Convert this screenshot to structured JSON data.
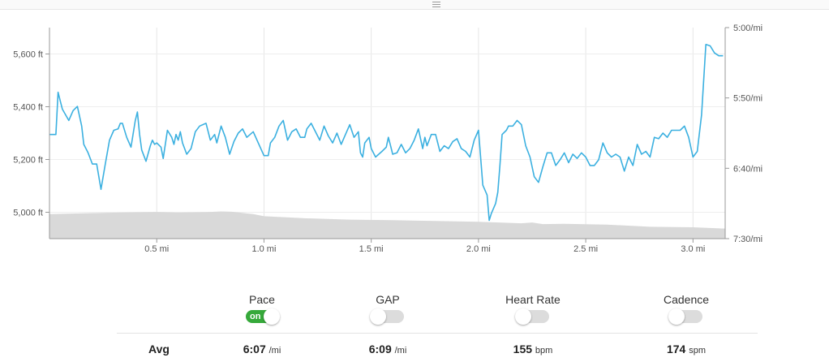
{
  "chart_data": {
    "type": "line",
    "xlabel": "",
    "ylabel_left": "",
    "ylabel_right": "",
    "x_ticks": [
      "0.5 mi",
      "1.0 mi",
      "1.5 mi",
      "2.0 mi",
      "2.5 mi",
      "3.0 mi"
    ],
    "x_tick_values": [
      0.5,
      1.0,
      1.5,
      2.0,
      2.5,
      3.0
    ],
    "xlim": [
      0,
      3.15
    ],
    "elevation_ticks": [
      "5,000 ft",
      "5,200 ft",
      "5,400 ft",
      "5,600 ft"
    ],
    "elevation_tick_values": [
      5000,
      5200,
      5400,
      5600
    ],
    "elevation_ylim": [
      4900,
      5700
    ],
    "pace_ticks": [
      "5:00/mi",
      "5:50/mi",
      "6:40/mi",
      "7:30/mi"
    ],
    "pace_tick_values_sec": [
      300,
      350,
      400,
      450
    ],
    "pace_ylim_sec": [
      300,
      450
    ],
    "grid": true,
    "series": [
      {
        "name": "Pace",
        "color": "#3bb0e0",
        "axis": "right",
        "x": [
          0,
          0.03,
          0.04,
          0.05,
          0.06,
          0.09,
          0.11,
          0.13,
          0.15,
          0.16,
          0.18,
          0.2,
          0.22,
          0.24,
          0.26,
          0.28,
          0.3,
          0.32,
          0.33,
          0.34,
          0.36,
          0.38,
          0.4,
          0.41,
          0.42,
          0.43,
          0.45,
          0.47,
          0.48,
          0.49,
          0.5,
          0.52,
          0.53,
          0.55,
          0.57,
          0.58,
          0.59,
          0.6,
          0.61,
          0.62,
          0.64,
          0.66,
          0.68,
          0.7,
          0.73,
          0.75,
          0.77,
          0.78,
          0.8,
          0.82,
          0.84,
          0.86,
          0.88,
          0.9,
          0.92,
          0.95,
          1.0,
          1.02,
          1.03,
          1.05,
          1.07,
          1.09,
          1.11,
          1.13,
          1.15,
          1.17,
          1.19,
          1.2,
          1.22,
          1.24,
          1.26,
          1.28,
          1.3,
          1.32,
          1.34,
          1.36,
          1.38,
          1.4,
          1.42,
          1.44,
          1.45,
          1.46,
          1.47,
          1.49,
          1.5,
          1.52,
          1.55,
          1.57,
          1.58,
          1.59,
          1.6,
          1.62,
          1.64,
          1.66,
          1.68,
          1.7,
          1.72,
          1.74,
          1.75,
          1.76,
          1.78,
          1.8,
          1.82,
          1.84,
          1.86,
          1.88,
          1.9,
          1.92,
          1.94,
          1.96,
          1.98,
          2.0,
          2.02,
          2.04,
          2.05,
          2.06,
          2.08,
          2.09,
          2.1,
          2.11,
          2.13,
          2.14,
          2.16,
          2.18,
          2.2,
          2.22,
          2.24,
          2.26,
          2.28,
          2.3,
          2.32,
          2.34,
          2.36,
          2.38,
          2.4,
          2.42,
          2.44,
          2.46,
          2.48,
          2.5,
          2.52,
          2.54,
          2.56,
          2.58,
          2.6,
          2.62,
          2.64,
          2.66,
          2.68,
          2.7,
          2.72,
          2.74,
          2.76,
          2.78,
          2.8,
          2.82,
          2.84,
          2.86,
          2.88,
          2.9,
          2.92,
          2.94,
          2.96,
          2.98,
          3.0,
          3.02,
          3.04,
          3.06,
          3.08,
          3.1,
          3.12,
          3.14
        ],
        "values": [
          376,
          376,
          346,
          352,
          358,
          366,
          359,
          356,
          370,
          383,
          389,
          397,
          397,
          415,
          397,
          380,
          373,
          372,
          368,
          368,
          378,
          385,
          366,
          360,
          376,
          387,
          395,
          384,
          380,
          383,
          382,
          385,
          393,
          373,
          378,
          383,
          376,
          380,
          374,
          382,
          390,
          386,
          374,
          370,
          368,
          380,
          376,
          382,
          370,
          378,
          390,
          381,
          375,
          372,
          378,
          374,
          391,
          391,
          382,
          378,
          370,
          366,
          380,
          374,
          372,
          378,
          378,
          372,
          368,
          374,
          380,
          370,
          377,
          382,
          375,
          383,
          376,
          369,
          378,
          374,
          389,
          392,
          382,
          378,
          386,
          392,
          388,
          385,
          378,
          384,
          390,
          389,
          383,
          389,
          386,
          380,
          372,
          386,
          378,
          384,
          376,
          376,
          388,
          384,
          386,
          381,
          379,
          386,
          388,
          392,
          380,
          373,
          412,
          419,
          437,
          432,
          425,
          417,
          398,
          376,
          373,
          370,
          370,
          366,
          369,
          384,
          392,
          406,
          410,
          399,
          389,
          389,
          398,
          394,
          389,
          396,
          390,
          393,
          389,
          392,
          398,
          398,
          394,
          382,
          389,
          392,
          390,
          392,
          402,
          392,
          398,
          383,
          390,
          388,
          392,
          378,
          379,
          375,
          378,
          373,
          373,
          373,
          370,
          378,
          392,
          388,
          362,
          312,
          313,
          318,
          320,
          320
        ]
      },
      {
        "name": "Elevation",
        "color": "#d9d9d9",
        "axis": "left",
        "x": [
          0,
          0.2,
          0.4,
          0.5,
          0.6,
          0.75,
          0.8,
          0.85,
          0.95,
          1.0,
          1.2,
          1.4,
          1.6,
          1.8,
          2.0,
          2.2,
          2.25,
          2.3,
          2.4,
          2.6,
          2.8,
          3.0,
          3.15
        ],
        "values": [
          4993,
          4997,
          5000,
          5001,
          4999,
          5001,
          5003,
          5002,
          4993,
          4985,
          4977,
          4972,
          4970,
          4967,
          4964,
          4958,
          4961,
          4955,
          4956,
          4953,
          4945,
          4943,
          4938
        ]
      }
    ]
  },
  "toggles": [
    {
      "label": "Pace",
      "on": true,
      "on_text": "on"
    },
    {
      "label": "GAP",
      "on": false
    },
    {
      "label": "Heart Rate",
      "on": false
    },
    {
      "label": "Cadence",
      "on": false
    }
  ],
  "avg": {
    "label": "Avg",
    "pace_value": "6:07",
    "pace_unit": "/mi",
    "gap_value": "6:09",
    "gap_unit": "/mi",
    "hr_value": "155",
    "hr_unit": "bpm",
    "cadence_value": "174",
    "cadence_unit": "spm"
  }
}
